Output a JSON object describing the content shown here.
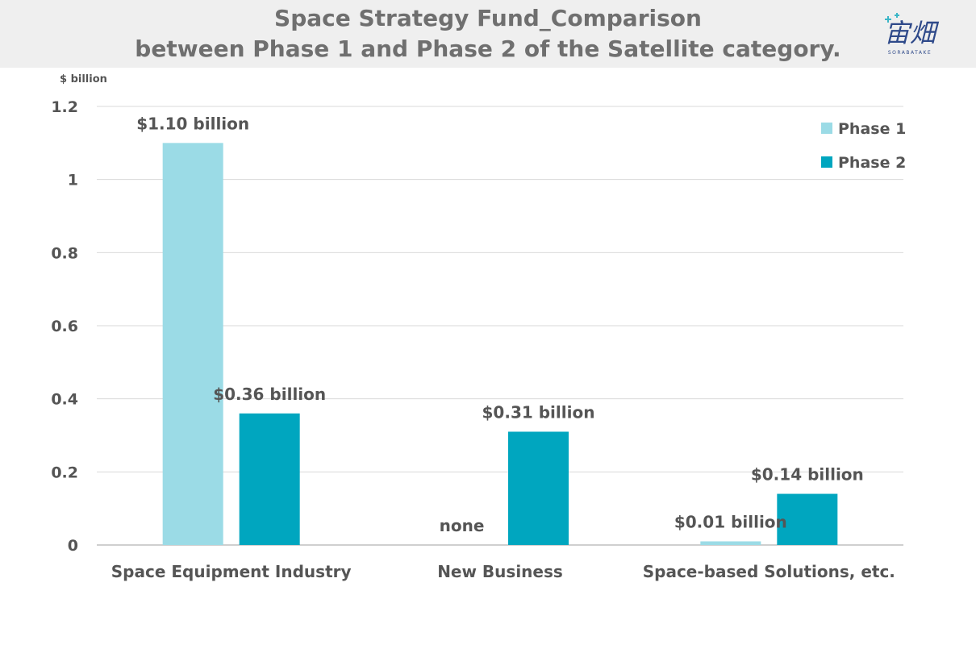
{
  "chart_data": {
    "type": "bar",
    "title_line1": "Space Strategy Fund_Comparison",
    "title_line2": "between Phase 1 and Phase 2 of the Satellite category.",
    "unit_label": "$ billion",
    "categories": [
      "Space Equipment Industry",
      "New Business",
      "Space-based Solutions, etc."
    ],
    "series": [
      {
        "name": "Phase 1",
        "color": "#9bdbe6",
        "values": [
          1.1,
          null,
          0.01
        ],
        "labels": [
          "$1.10 billion",
          "none",
          "$0.01 billion"
        ]
      },
      {
        "name": "Phase 2",
        "color": "#00a6bf",
        "values": [
          0.36,
          0.31,
          0.14
        ],
        "labels": [
          "$0.36 billion",
          "$0.31 billion",
          "$0.14 billion"
        ]
      }
    ],
    "yticks": [
      "0",
      "0.2",
      "0.4",
      "0.6",
      "0.8",
      "1",
      "1.2"
    ],
    "ylim": [
      0,
      1.2
    ],
    "grid": true,
    "legend_position": "top-right"
  },
  "logo": {
    "text": "宙畑",
    "subtext": "SORABATAKE",
    "colors": [
      "#2f4a8a",
      "#3bb6c7"
    ]
  }
}
